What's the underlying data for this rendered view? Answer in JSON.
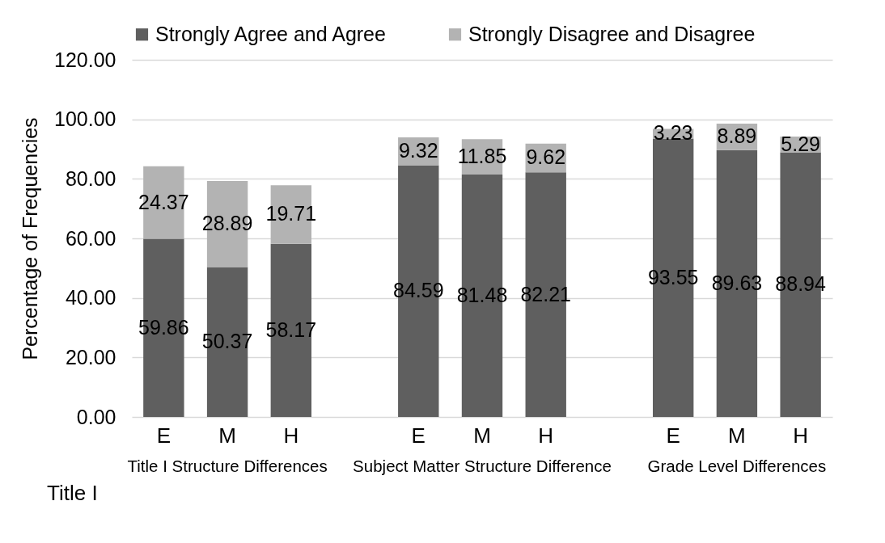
{
  "chart_data": {
    "type": "bar",
    "stacked": true,
    "ylabel": "Percentage of Frequencies",
    "categories": [
      "E",
      "M",
      "H",
      null,
      "E",
      "M",
      "H",
      null,
      "E",
      "M",
      "H"
    ],
    "series": [
      {
        "name": "Strongly Agree and Agree",
        "color": "#5f5f5f",
        "values": [
          59.86,
          50.37,
          58.17,
          null,
          84.59,
          81.48,
          82.21,
          null,
          93.55,
          89.63,
          88.94
        ]
      },
      {
        "name": "Strongly Disagree and Disagree",
        "color": "#b3b3b3",
        "values": [
          24.37,
          28.89,
          19.71,
          null,
          9.32,
          11.85,
          9.62,
          null,
          3.23,
          8.89,
          5.29
        ]
      }
    ],
    "ylim": [
      0,
      120
    ],
    "yticks": [
      {
        "value": 0,
        "label": "0.00"
      },
      {
        "value": 20,
        "label": "20.00"
      },
      {
        "value": 40,
        "label": "40.00"
      },
      {
        "value": 60,
        "label": "60.00"
      },
      {
        "value": 80,
        "label": "80.00"
      },
      {
        "value": 100,
        "label": "100.00"
      },
      {
        "value": 120,
        "label": "120.00"
      }
    ],
    "grid": "y",
    "legend": "top",
    "data_labels": true,
    "annotations": [
      "Title I Structure Differences",
      "Subject Matter Structure Difference",
      "Grade Level Differences",
      "Title I"
    ]
  }
}
